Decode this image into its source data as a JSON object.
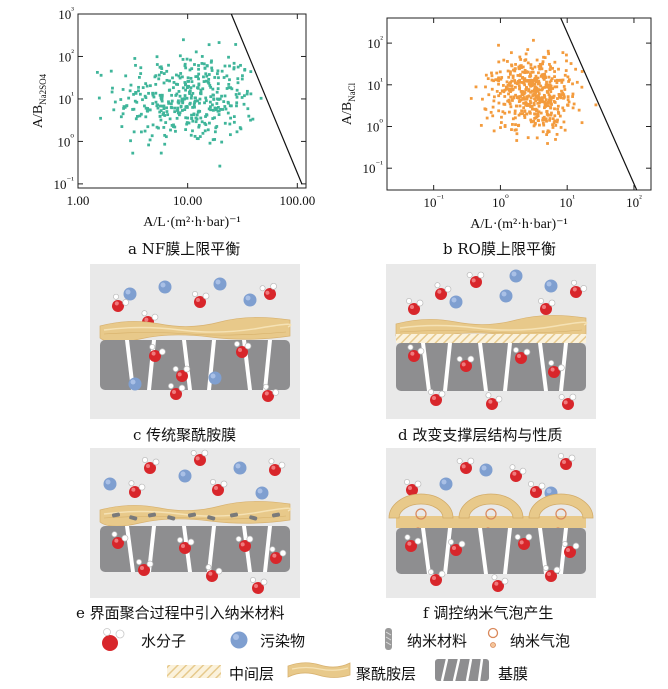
{
  "chart_data": [
    {
      "type": "scatter",
      "panel": "a",
      "title": "a NF膜上限平衡",
      "xlabel": "A/L·(m²·h·bar)⁻¹",
      "ylabel": "A/B_Na2SO4",
      "xscale": "log",
      "yscale": "log",
      "xlim": [
        1,
        120
      ],
      "ylim": [
        0.08,
        1000
      ],
      "x_tick_labels": [
        "1.00",
        "10.00",
        "100.00"
      ],
      "x_tick_values": [
        1,
        10,
        100
      ],
      "y_tick_labels": [
        "10⁻¹",
        "10⁰",
        "10¹",
        "10²",
        "10³"
      ],
      "y_tick_values": [
        0.1,
        1,
        10,
        100,
        1000
      ],
      "point_color": "#3fb59a",
      "upper_bound_line": [
        [
          25,
          1000
        ],
        [
          110,
          0.1
        ]
      ],
      "cluster": {
        "center_x": 10,
        "center_y": 10,
        "spread_log_x": 0.32,
        "spread_log_y": 0.55,
        "count": 420
      }
    },
    {
      "type": "scatter",
      "panel": "b",
      "title": "b RO膜上限平衡",
      "xlabel": "A/L·(m²·h·bar)⁻¹",
      "ylabel": "A/B_NaCl",
      "xscale": "log",
      "yscale": "log",
      "xlim": [
        0.02,
        180
      ],
      "ylim": [
        0.03,
        400
      ],
      "x_tick_labels": [
        "10⁻¹",
        "10⁰",
        "10¹",
        "10²"
      ],
      "x_tick_values": [
        0.1,
        1,
        10,
        100
      ],
      "y_tick_labels": [
        "10⁻¹",
        "10⁰",
        "10¹",
        "10²"
      ],
      "y_tick_values": [
        0.1,
        1,
        10,
        100
      ],
      "point_color": "#f39b3d",
      "upper_bound_line": [
        [
          8,
          400
        ],
        [
          110,
          0.03
        ]
      ],
      "cluster": {
        "center_x": 2.8,
        "center_y": 6,
        "spread_log_x": 0.3,
        "spread_log_y": 0.45,
        "count": 520
      }
    }
  ],
  "panels": {
    "c": {
      "caption": "c 传统聚酰胺膜"
    },
    "d": {
      "caption": "d 改变支撑层结构与性质"
    },
    "e": {
      "caption": "e 界面聚合过程中引入纳米材料"
    },
    "f": {
      "caption": "f 调控纳米气泡产生"
    }
  },
  "legend": {
    "water": "水分子",
    "pollutant": "污染物",
    "nanomaterial": "纳米材料",
    "nanobubble": "纳米气泡",
    "interlayer": "中间层",
    "polyamide": "聚酰胺层",
    "substrate": "基膜"
  },
  "colors": {
    "water_oxygen": "#d8262b",
    "pollutant": "#7f9fd0",
    "polyamide": "#e8c98a",
    "substrate": "#8e8e90",
    "panel_bg": "#e9e9e9",
    "bubble_ring": "#d9885a",
    "nano_material": "#7a7a7a"
  }
}
